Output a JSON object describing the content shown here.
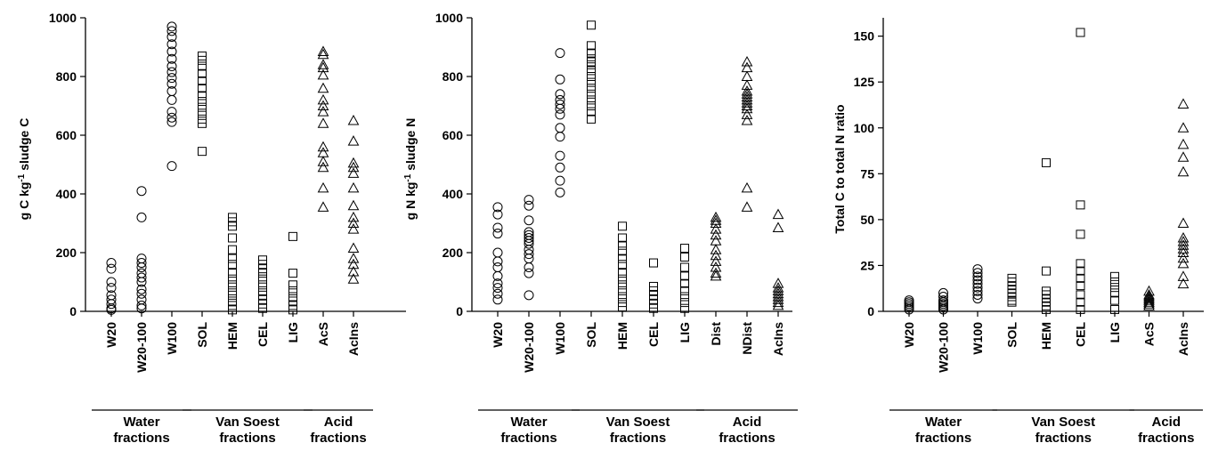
{
  "chart_data": [
    {
      "type": "scatter",
      "ylabel_parts": [
        "g C kg",
        "-1",
        " sludge C"
      ],
      "ylim": [
        0,
        1000
      ],
      "yticks": [
        0,
        200,
        400,
        600,
        800,
        1000
      ],
      "categories": [
        "W20",
        "W20-100",
        "W100",
        "SOL",
        "HEM",
        "CEL",
        "LIG",
        "AcS",
        "AcIns"
      ],
      "marker_by_category": [
        "circle",
        "circle",
        "circle",
        "square",
        "square",
        "square",
        "square",
        "triangle",
        "triangle"
      ],
      "groups": [
        {
          "lines": [
            "Water",
            "fractions"
          ],
          "start": 0,
          "end": 2
        },
        {
          "lines": [
            "Van Soest",
            "fractions"
          ],
          "start": 3,
          "end": 6
        },
        {
          "lines": [
            "Acid",
            "fractions"
          ],
          "start": 7,
          "end": 8
        }
      ],
      "points": [
        [
          165,
          145,
          100,
          80,
          55,
          40,
          25,
          10,
          5
        ],
        [
          410,
          320,
          180,
          165,
          150,
          130,
          115,
          100,
          75,
          60,
          40,
          20,
          10
        ],
        [
          970,
          955,
          935,
          910,
          885,
          860,
          835,
          815,
          795,
          775,
          750,
          720,
          680,
          660,
          645,
          495
        ],
        [
          870,
          855,
          835,
          810,
          785,
          760,
          735,
          715,
          695,
          675,
          655,
          640,
          545
        ],
        [
          320,
          305,
          290,
          250,
          210,
          180,
          160,
          130,
          110,
          90,
          70,
          55,
          35,
          20,
          5
        ],
        [
          175,
          160,
          145,
          130,
          110,
          90,
          70,
          55,
          40,
          25,
          10
        ],
        [
          255,
          130,
          90,
          70,
          50,
          35,
          20,
          5
        ],
        [
          885,
          875,
          840,
          830,
          805,
          760,
          720,
          700,
          680,
          640,
          560,
          540,
          510,
          490,
          420,
          355
        ],
        [
          650,
          580,
          505,
          490,
          470,
          420,
          360,
          320,
          300,
          280,
          215,
          180,
          160,
          135,
          110
        ]
      ]
    },
    {
      "type": "scatter",
      "ylabel_parts": [
        "g N kg",
        "-1",
        " sludge N"
      ],
      "ylim": [
        0,
        1000
      ],
      "yticks": [
        0,
        200,
        400,
        600,
        800,
        1000
      ],
      "categories": [
        "W20",
        "W20-100",
        "W100",
        "SOL",
        "HEM",
        "CEL",
        "LIG",
        "Dist",
        "NDist",
        "AcIns"
      ],
      "marker_by_category": [
        "circle",
        "circle",
        "circle",
        "square",
        "square",
        "square",
        "square",
        "triangle",
        "triangle",
        "triangle"
      ],
      "groups": [
        {
          "lines": [
            "Water",
            "fractions"
          ],
          "start": 0,
          "end": 2
        },
        {
          "lines": [
            "Van Soest",
            "fractions"
          ],
          "start": 3,
          "end": 6
        },
        {
          "lines": [
            "Acid",
            "fractions"
          ],
          "start": 7,
          "end": 9
        }
      ],
      "points": [
        [
          355,
          330,
          285,
          265,
          200,
          170,
          150,
          120,
          95,
          80,
          60,
          40
        ],
        [
          380,
          360,
          310,
          270,
          260,
          250,
          240,
          230,
          210,
          195,
          180,
          150,
          130,
          55
        ],
        [
          880,
          790,
          740,
          720,
          705,
          690,
          670,
          625,
          595,
          530,
          490,
          445,
          405
        ],
        [
          975,
          905,
          880,
          860,
          850,
          840,
          820,
          800,
          780,
          760,
          740,
          720,
          700,
          680,
          655
        ],
        [
          290,
          250,
          225,
          205,
          180,
          160,
          130,
          110,
          90,
          70,
          50,
          30,
          15
        ],
        [
          165,
          85,
          70,
          55,
          40,
          25,
          10
        ],
        [
          215,
          185,
          150,
          120,
          95,
          70,
          50,
          30,
          10
        ],
        [
          320,
          310,
          300,
          280,
          260,
          240,
          210,
          190,
          170,
          150,
          130,
          120
        ],
        [
          850,
          830,
          800,
          770,
          750,
          740,
          730,
          720,
          710,
          700,
          690,
          670,
          650,
          420,
          355
        ],
        [
          330,
          285,
          95,
          80,
          70,
          60,
          50,
          40,
          30,
          20
        ]
      ]
    },
    {
      "type": "scatter",
      "ylabel": "Total C to total N ratio",
      "ylim": [
        0,
        160
      ],
      "yticks": [
        0,
        25,
        50,
        75,
        100,
        125,
        150
      ],
      "categories": [
        "W20",
        "W20-100",
        "W100",
        "SOL",
        "HEM",
        "CEL",
        "LIG",
        "AcS",
        "AcIns"
      ],
      "marker_by_category": [
        "circle",
        "circle",
        "circle",
        "square",
        "square",
        "square",
        "square",
        "triangle",
        "triangle"
      ],
      "groups": [
        {
          "lines": [
            "Water",
            "fractions"
          ],
          "start": 0,
          "end": 2
        },
        {
          "lines": [
            "Van Soest",
            "fractions"
          ],
          "start": 3,
          "end": 6
        },
        {
          "lines": [
            "Acid",
            "fractions"
          ],
          "start": 7,
          "end": 8
        }
      ],
      "points": [
        [
          6,
          5,
          4,
          3,
          2,
          1
        ],
        [
          10,
          8,
          6,
          5,
          4,
          3,
          2,
          1
        ],
        [
          23,
          21,
          19,
          17,
          15,
          13,
          11,
          9,
          7
        ],
        [
          18,
          16,
          14,
          12,
          10,
          8,
          6,
          5
        ],
        [
          81,
          22,
          11,
          9,
          7,
          5,
          3,
          1
        ],
        [
          152,
          58,
          42,
          26,
          22,
          18,
          14,
          9,
          5,
          1
        ],
        [
          19,
          16,
          13,
          10,
          6,
          1
        ],
        [
          11,
          9,
          8,
          7,
          6,
          5,
          4,
          3
        ],
        [
          113,
          100,
          91,
          84,
          76,
          48,
          40,
          38,
          36,
          34,
          32,
          29,
          26,
          19,
          15
        ]
      ]
    }
  ]
}
